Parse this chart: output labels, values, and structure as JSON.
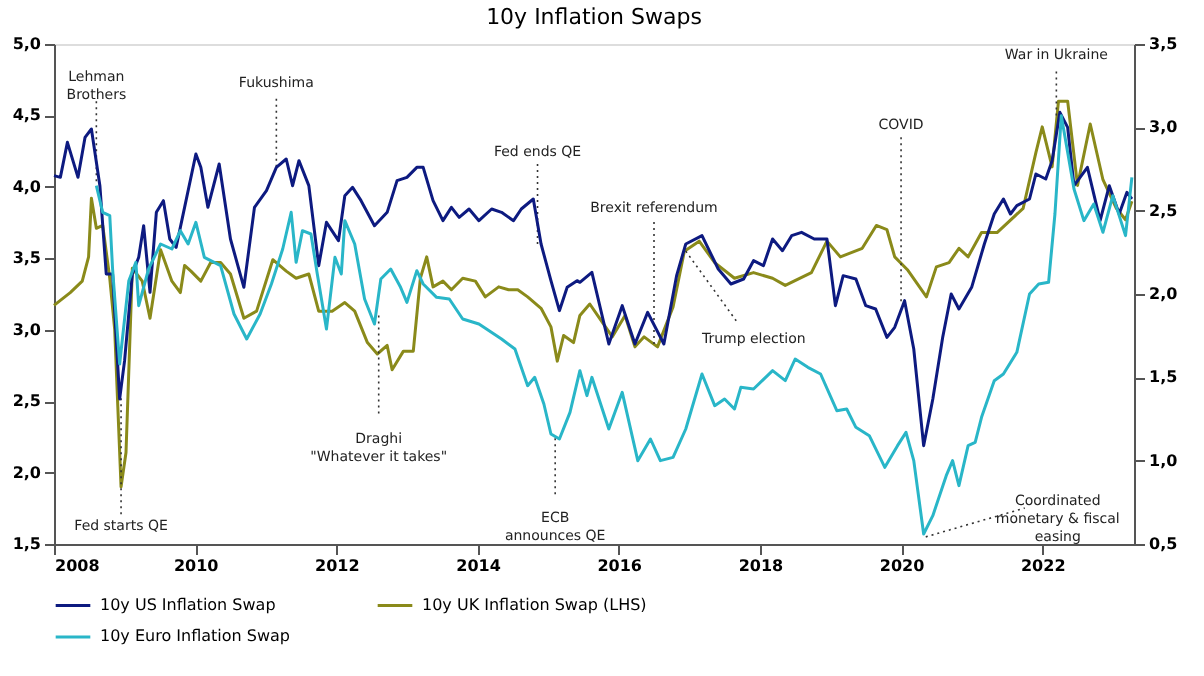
{
  "chart_data": {
    "type": "line",
    "title": "10y Inflation Swaps",
    "xlim": [
      2008,
      2023.3
    ],
    "xticks": [
      2008,
      2010,
      2012,
      2014,
      2016,
      2018,
      2020,
      2022
    ],
    "ylim": [
      1.5,
      5.0
    ],
    "yticks": [
      {
        "value": 1.5,
        "label": "1,5"
      },
      {
        "value": 2.0,
        "label": "2,0"
      },
      {
        "value": 2.5,
        "label": "2,5"
      },
      {
        "value": 3.0,
        "label": "3,0"
      },
      {
        "value": 3.5,
        "label": "3,5"
      },
      {
        "value": 4.0,
        "label": "4,0"
      },
      {
        "value": 4.5,
        "label": "4,5"
      },
      {
        "value": 5.0,
        "label": "5,0"
      }
    ],
    "y2lim": [
      0.5,
      3.5
    ],
    "y2ticks": [
      {
        "value": 0.5,
        "label": "0,5"
      },
      {
        "value": 1.0,
        "label": "1,0"
      },
      {
        "value": 1.5,
        "label": "1,5"
      },
      {
        "value": 2.0,
        "label": "2,0"
      },
      {
        "value": 2.5,
        "label": "2,5"
      },
      {
        "value": 3.0,
        "label": "3,0"
      },
      {
        "value": 3.5,
        "label": "3,5"
      }
    ],
    "legend": "bottom",
    "series": [
      {
        "name": "10y US Inflation Swap",
        "color": "#0d1a80",
        "axis": "y2",
        "x": [
          2008.0,
          2008.09,
          2008.19,
          2008.34,
          2008.44,
          2008.53,
          2008.65,
          2008.74,
          2008.83,
          2008.93,
          2009.0,
          2009.11,
          2009.2,
          2009.27,
          2009.36,
          2009.45,
          2009.55,
          2009.64,
          2009.73,
          2009.85,
          2010.01,
          2010.08,
          2010.18,
          2010.34,
          2010.5,
          2010.69,
          2010.84,
          2011.01,
          2011.15,
          2011.29,
          2011.38,
          2011.47,
          2011.61,
          2011.75,
          2011.86,
          2012.03,
          2012.12,
          2012.23,
          2012.35,
          2012.54,
          2012.72,
          2012.86,
          2013.0,
          2013.14,
          2013.23,
          2013.37,
          2013.51,
          2013.63,
          2013.74,
          2013.88,
          2014.02,
          2014.2,
          2014.34,
          2014.51,
          2014.62,
          2014.79,
          2014.9,
          2015.04,
          2015.16,
          2015.27,
          2015.41,
          2015.45,
          2015.62,
          2015.86,
          2016.05,
          2016.23,
          2016.41,
          2016.64,
          2016.82,
          2016.95,
          2017.18,
          2017.41,
          2017.59,
          2017.77,
          2017.91,
          2018.05,
          2018.18,
          2018.32,
          2018.45,
          2018.59,
          2018.77,
          2018.95,
          2019.07,
          2019.18,
          2019.36,
          2019.5,
          2019.64,
          2019.8,
          2019.91,
          2020.05,
          2020.18,
          2020.32,
          2020.45,
          2020.59,
          2020.71,
          2020.82,
          2021.0,
          2021.18,
          2021.32,
          2021.45,
          2021.55,
          2021.64,
          2021.82,
          2021.91,
          2022.05,
          2022.14,
          2022.25,
          2022.36,
          2022.45,
          2022.64,
          2022.82,
          2022.95,
          2023.09,
          2023.2,
          2023.27
        ],
        "values": [
          2.71,
          2.7,
          2.91,
          2.7,
          2.94,
          2.99,
          2.65,
          2.12,
          2.12,
          1.37,
          1.6,
          2.12,
          2.22,
          2.41,
          2.01,
          2.49,
          2.56,
          2.33,
          2.28,
          2.52,
          2.84,
          2.76,
          2.52,
          2.78,
          2.33,
          2.04,
          2.52,
          2.62,
          2.76,
          2.81,
          2.65,
          2.8,
          2.65,
          2.17,
          2.43,
          2.32,
          2.59,
          2.64,
          2.56,
          2.41,
          2.49,
          2.68,
          2.7,
          2.76,
          2.76,
          2.56,
          2.44,
          2.52,
          2.46,
          2.51,
          2.44,
          2.51,
          2.49,
          2.44,
          2.51,
          2.57,
          2.3,
          2.08,
          1.9,
          2.04,
          2.08,
          2.07,
          2.13,
          1.7,
          1.93,
          1.7,
          1.89,
          1.7,
          2.11,
          2.3,
          2.35,
          2.15,
          2.06,
          2.09,
          2.2,
          2.17,
          2.33,
          2.26,
          2.35,
          2.37,
          2.33,
          2.33,
          1.93,
          2.11,
          2.09,
          1.93,
          1.91,
          1.74,
          1.8,
          1.96,
          1.67,
          1.09,
          1.37,
          1.74,
          2.0,
          1.91,
          2.04,
          2.3,
          2.48,
          2.57,
          2.48,
          2.53,
          2.57,
          2.72,
          2.69,
          2.8,
          3.09,
          3.0,
          2.65,
          2.76,
          2.44,
          2.65,
          2.48,
          2.61,
          2.57
        ]
      },
      {
        "name": "10y UK Inflation Swap (LHS)",
        "color": "#8a8a1a",
        "axis": "y",
        "x": [
          2008.0,
          2008.23,
          2008.4,
          2008.49,
          2008.53,
          2008.6,
          2008.69,
          2008.79,
          2008.86,
          2008.95,
          2009.02,
          2009.11,
          2009.25,
          2009.36,
          2009.51,
          2009.67,
          2009.79,
          2009.85,
          2009.94,
          2010.08,
          2010.22,
          2010.36,
          2010.5,
          2010.69,
          2010.87,
          2011.1,
          2011.29,
          2011.43,
          2011.61,
          2011.75,
          2011.94,
          2012.12,
          2012.26,
          2012.44,
          2012.58,
          2012.72,
          2012.79,
          2012.95,
          2013.09,
          2013.19,
          2013.28,
          2013.37,
          2013.51,
          2013.63,
          2013.79,
          2013.97,
          2014.11,
          2014.3,
          2014.44,
          2014.57,
          2014.71,
          2014.9,
          2015.04,
          2015.13,
          2015.22,
          2015.36,
          2015.45,
          2015.59,
          2015.73,
          2015.91,
          2016.09,
          2016.23,
          2016.36,
          2016.55,
          2016.77,
          2016.93,
          2017.14,
          2017.36,
          2017.64,
          2017.91,
          2018.18,
          2018.36,
          2018.73,
          2018.95,
          2019.14,
          2019.45,
          2019.65,
          2019.8,
          2019.91,
          2020.09,
          2020.36,
          2020.5,
          2020.68,
          2020.82,
          2020.95,
          2021.14,
          2021.36,
          2021.73,
          2021.91,
          2022.0,
          2022.14,
          2022.23,
          2022.36,
          2022.5,
          2022.68,
          2022.86,
          2023.05,
          2023.18,
          2023.27
        ],
        "values": [
          3.17,
          3.26,
          3.34,
          3.51,
          3.92,
          3.71,
          3.73,
          3.36,
          3.0,
          1.9,
          2.14,
          3.43,
          3.34,
          3.08,
          3.56,
          3.34,
          3.26,
          3.45,
          3.41,
          3.34,
          3.47,
          3.47,
          3.39,
          3.08,
          3.13,
          3.49,
          3.41,
          3.36,
          3.39,
          3.13,
          3.13,
          3.19,
          3.13,
          2.91,
          2.83,
          2.89,
          2.72,
          2.85,
          2.85,
          3.36,
          3.51,
          3.3,
          3.34,
          3.28,
          3.36,
          3.34,
          3.23,
          3.3,
          3.28,
          3.28,
          3.23,
          3.15,
          3.02,
          2.78,
          2.96,
          2.91,
          3.1,
          3.18,
          3.08,
          2.95,
          3.1,
          2.88,
          2.95,
          2.88,
          3.16,
          3.55,
          3.62,
          3.47,
          3.36,
          3.4,
          3.36,
          3.31,
          3.4,
          3.62,
          3.51,
          3.57,
          3.73,
          3.7,
          3.51,
          3.42,
          3.23,
          3.44,
          3.47,
          3.57,
          3.51,
          3.68,
          3.68,
          3.85,
          4.24,
          4.42,
          4.14,
          4.6,
          4.6,
          4.01,
          4.44,
          4.05,
          3.85,
          3.77,
          3.9
        ]
      },
      {
        "name": "10y Euro Inflation Swap",
        "color": "#29b6c8",
        "axis": "y2",
        "x": [
          2008.6,
          2008.69,
          2008.79,
          2008.83,
          2008.93,
          2009.06,
          2009.16,
          2009.2,
          2009.34,
          2009.51,
          2009.67,
          2009.79,
          2009.9,
          2010.01,
          2010.13,
          2010.36,
          2010.55,
          2010.73,
          2010.92,
          2011.08,
          2011.24,
          2011.36,
          2011.43,
          2011.52,
          2011.64,
          2011.73,
          2011.86,
          2011.98,
          2012.07,
          2012.12,
          2012.26,
          2012.4,
          2012.54,
          2012.63,
          2012.77,
          2012.91,
          2013.0,
          2013.14,
          2013.23,
          2013.42,
          2013.6,
          2013.79,
          2014.02,
          2014.34,
          2014.53,
          2014.71,
          2014.81,
          2014.94,
          2015.04,
          2015.16,
          2015.31,
          2015.45,
          2015.55,
          2015.62,
          2015.86,
          2016.05,
          2016.27,
          2016.45,
          2016.59,
          2016.77,
          2016.95,
          2017.18,
          2017.36,
          2017.5,
          2017.64,
          2017.73,
          2017.91,
          2018.18,
          2018.36,
          2018.5,
          2018.68,
          2018.86,
          2019.09,
          2019.23,
          2019.36,
          2019.55,
          2019.77,
          2019.95,
          2020.07,
          2020.18,
          2020.32,
          2020.45,
          2020.64,
          2020.73,
          2020.82,
          2020.95,
          2021.05,
          2021.14,
          2021.32,
          2021.45,
          2021.64,
          2021.82,
          2021.95,
          2022.09,
          2022.18,
          2022.27,
          2022.36,
          2022.45,
          2022.59,
          2022.73,
          2022.86,
          2023.0,
          2023.18,
          2023.27
        ],
        "values": [
          2.65,
          2.49,
          2.47,
          2.15,
          1.58,
          2.08,
          2.19,
          1.93,
          2.15,
          2.3,
          2.27,
          2.38,
          2.3,
          2.43,
          2.22,
          2.17,
          1.88,
          1.73,
          1.88,
          2.06,
          2.27,
          2.49,
          2.19,
          2.38,
          2.36,
          2.12,
          1.79,
          2.22,
          2.12,
          2.44,
          2.3,
          1.97,
          1.82,
          2.09,
          2.15,
          2.04,
          1.95,
          2.14,
          2.06,
          1.98,
          1.97,
          1.85,
          1.82,
          1.73,
          1.67,
          1.45,
          1.5,
          1.34,
          1.16,
          1.13,
          1.29,
          1.54,
          1.39,
          1.5,
          1.19,
          1.41,
          1.0,
          1.13,
          1.0,
          1.02,
          1.19,
          1.52,
          1.33,
          1.37,
          1.31,
          1.44,
          1.43,
          1.54,
          1.48,
          1.61,
          1.56,
          1.52,
          1.3,
          1.31,
          1.2,
          1.15,
          0.96,
          1.09,
          1.17,
          1.0,
          0.56,
          0.67,
          0.91,
          1.0,
          0.85,
          1.09,
          1.11,
          1.26,
          1.48,
          1.52,
          1.65,
          2.0,
          2.06,
          2.07,
          2.48,
          3.07,
          2.85,
          2.63,
          2.44,
          2.54,
          2.37,
          2.59,
          2.35,
          2.7
        ]
      }
    ],
    "annotations": [
      {
        "text": "Lehman\nBrothers",
        "x": 2008.6,
        "y": 4.04
      },
      {
        "text": "Fed starts QE",
        "x": 2008.95,
        "y": 2.52
      },
      {
        "text": "Fukushima",
        "x": 2011.15,
        "y": 4.14
      },
      {
        "text": "Draghi\n\"Whatever it takes\"",
        "x": 2012.6,
        "y": 3.1
      },
      {
        "text": "Fed ends QE",
        "x": 2014.85,
        "y": 3.6
      },
      {
        "text": "ECB\nannounces QE",
        "x": 2015.1,
        "y": 2.24
      },
      {
        "text": "Brexit referendum",
        "x": 2016.5,
        "y": 2.9
      },
      {
        "text": "Trump election",
        "x": 2016.95,
        "y": 3.55
      },
      {
        "text": "COVID",
        "x": 2020.0,
        "y": 3.2
      },
      {
        "text": "War in Ukraine",
        "x": 2022.2,
        "y": 4.5
      },
      {
        "text": "Coordinated\nmonetary & fiscal\neasing",
        "x": 2020.35,
        "y": 1.55
      }
    ]
  }
}
